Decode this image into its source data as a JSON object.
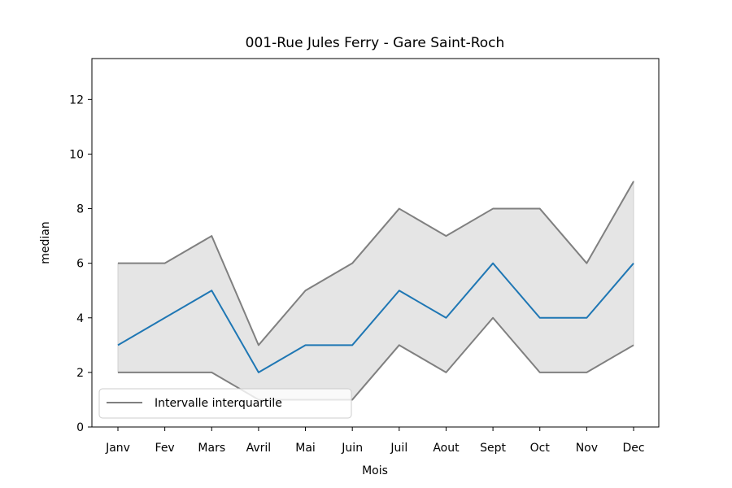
{
  "chart_data": {
    "type": "line",
    "title": "001-Rue Jules Ferry - Gare Saint-Roch",
    "xlabel": "Mois",
    "ylabel": "median",
    "categories": [
      "Janv",
      "Fev",
      "Mars",
      "Avril",
      "Mai",
      "Juin",
      "Juil",
      "Aout",
      "Sept",
      "Oct",
      "Nov",
      "Dec"
    ],
    "ylim": [
      0,
      13.5
    ],
    "yticks": [
      0,
      2,
      4,
      6,
      8,
      10,
      12
    ],
    "grid": false,
    "legend": {
      "position": "lower-left",
      "entries": [
        "Intervalle interquartile"
      ]
    },
    "series": [
      {
        "role": "median",
        "color": "#1f77b4",
        "values": [
          3,
          4,
          5,
          2,
          3,
          3,
          5,
          4,
          6,
          4,
          4,
          6
        ]
      },
      {
        "name": "Intervalle interquartile",
        "role": "q3",
        "color": "#808080",
        "values": [
          6,
          6,
          7,
          3,
          5,
          6,
          8,
          7,
          8,
          8,
          6,
          9
        ]
      },
      {
        "role": "q1",
        "color": "#808080",
        "values": [
          2,
          2,
          2,
          1,
          1,
          1,
          3,
          2,
          4,
          2,
          2,
          3
        ]
      }
    ],
    "fill_between": {
      "lower": "q1",
      "upper": "q3",
      "color": "#e5e5e5"
    }
  }
}
